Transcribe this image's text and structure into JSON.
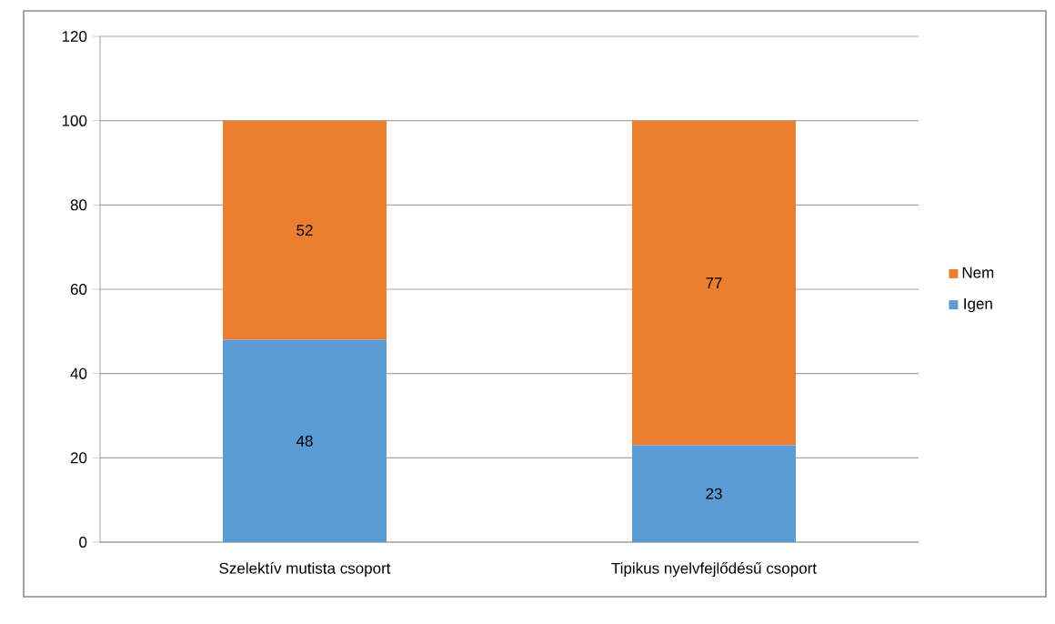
{
  "chart_data": {
    "type": "bar",
    "stacked": true,
    "categories": [
      "Szelektív mutista csoport",
      "Tipikus nyelvfejlődésű csoport"
    ],
    "series": [
      {
        "name": "Igen",
        "color": "#5b9bd5",
        "values": [
          48,
          23
        ]
      },
      {
        "name": "Nem",
        "color": "#ed7d31",
        "values": [
          52,
          77
        ]
      }
    ],
    "ylim": [
      0,
      120
    ],
    "yticks": [
      0,
      20,
      40,
      60,
      80,
      100,
      120
    ],
    "grid": "y",
    "legend": "right",
    "data_labels": true
  }
}
